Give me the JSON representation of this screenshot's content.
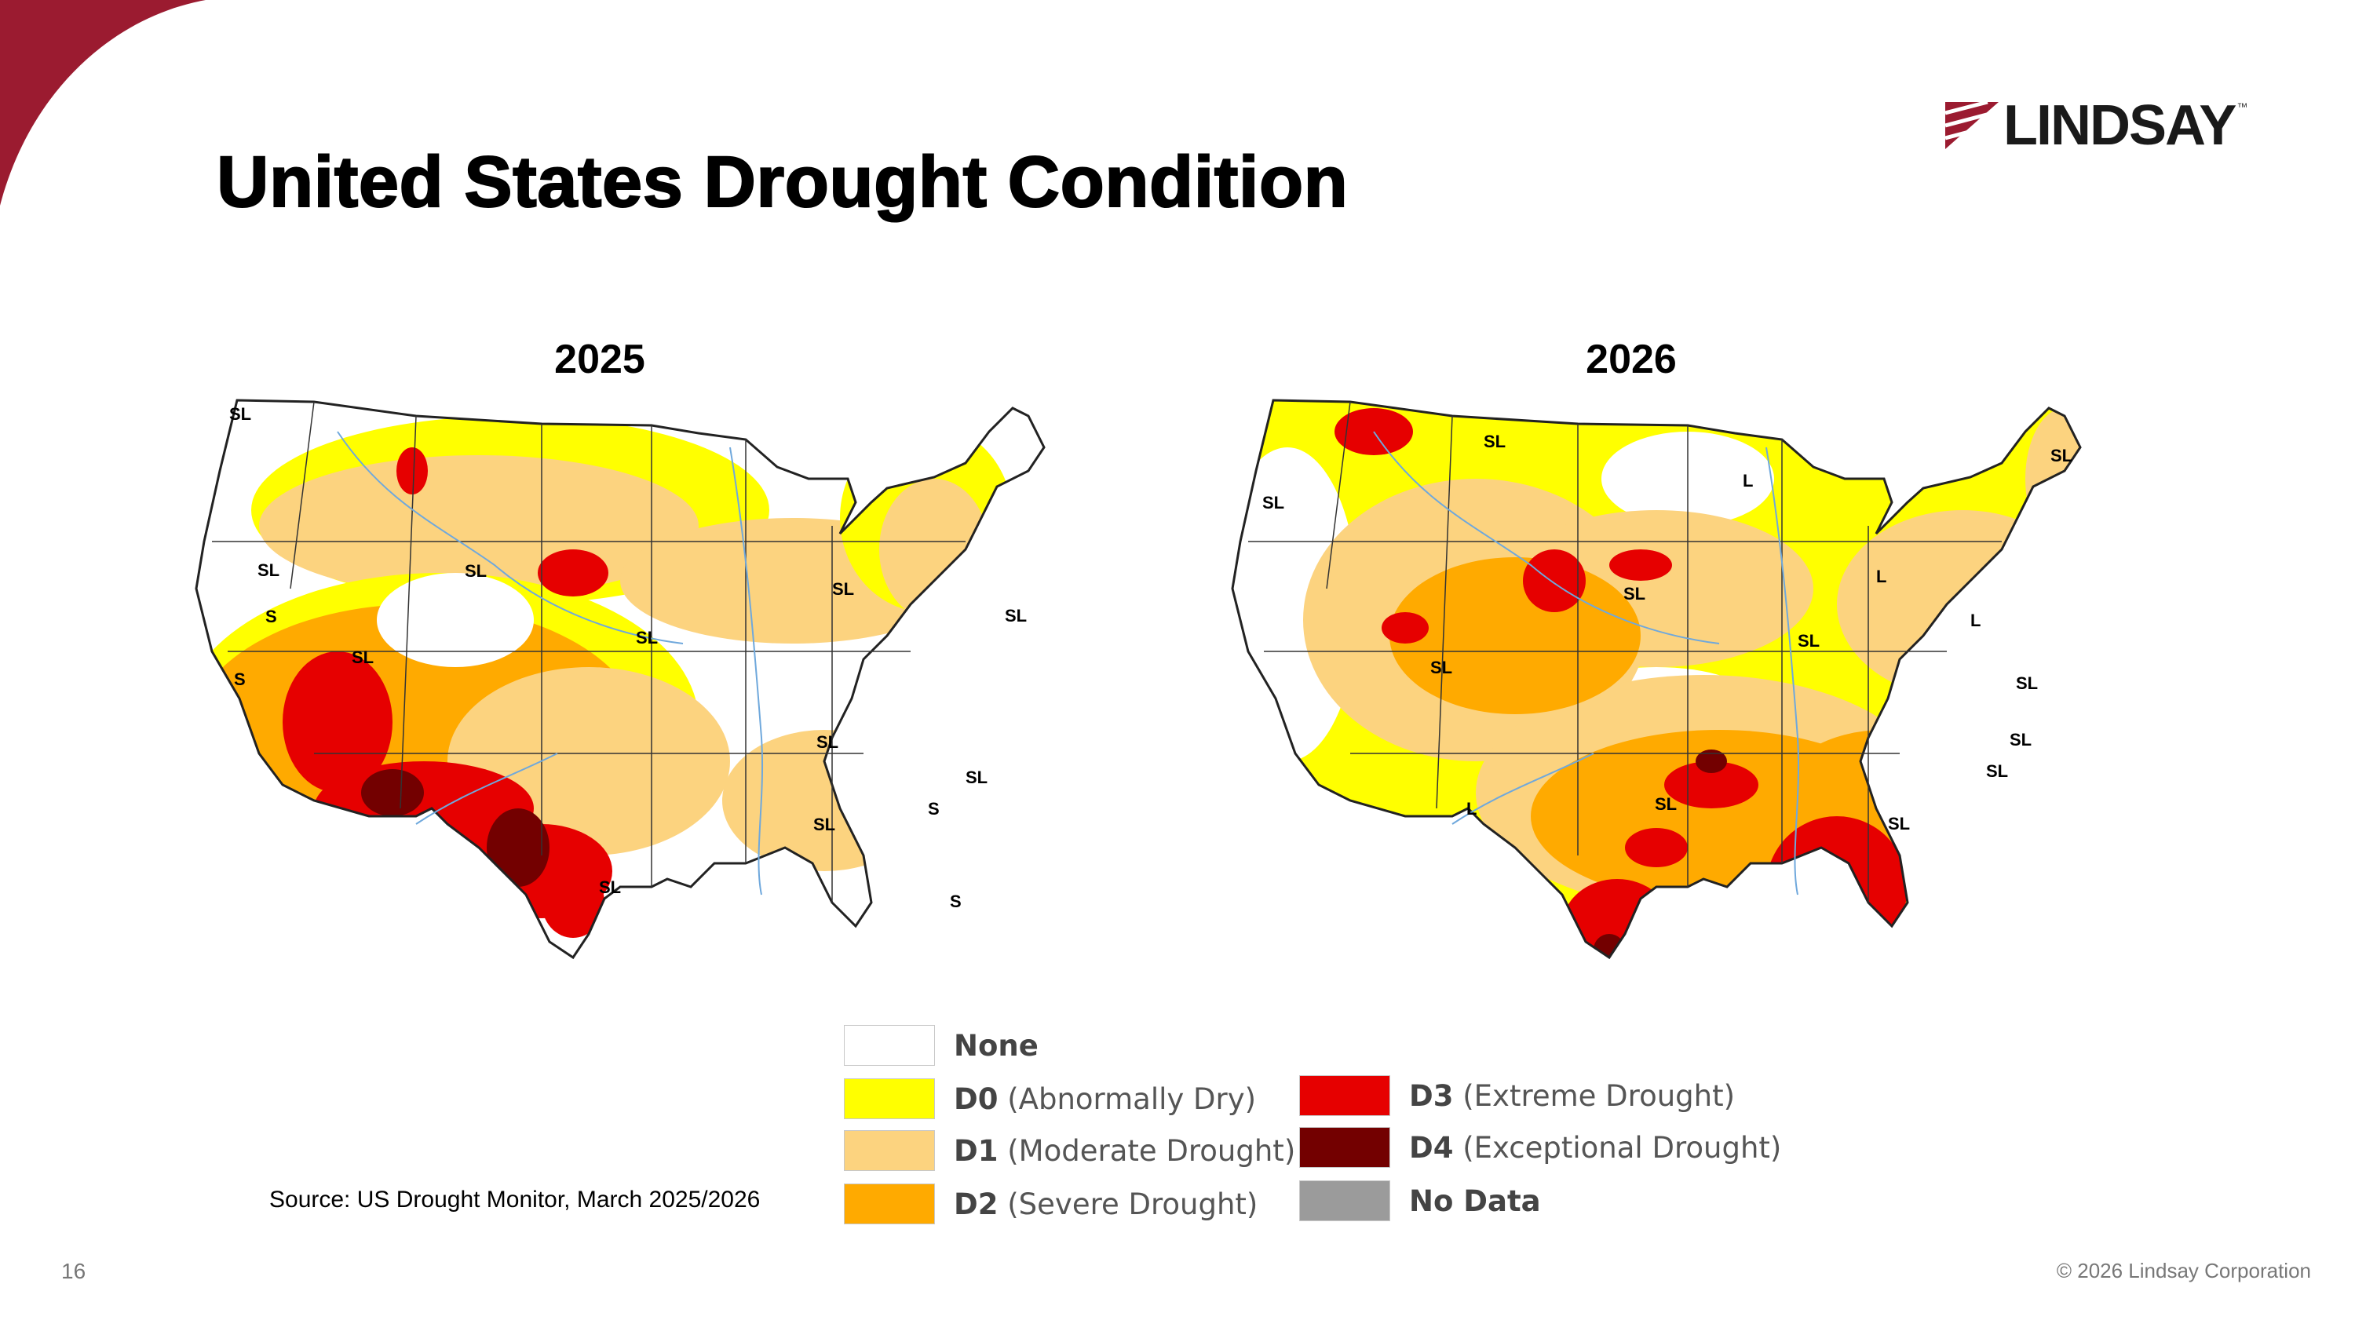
{
  "slide": {
    "title": "United States Drought Condition",
    "page_number": "16",
    "copyright": "© 2026 Lindsay Corporation",
    "source": "Source: US Drought Monitor, March 2025/2026"
  },
  "logo": {
    "text": "LINDSAY",
    "trademark": "™",
    "icon": "lindsay-stripes-logo",
    "color": "#9b1b30"
  },
  "maps": [
    {
      "year": "2025",
      "labels": [
        "SL",
        "SL",
        "S",
        "S",
        "SL",
        "SL",
        "SL",
        "SL",
        "SL",
        "SL",
        "SL",
        "S",
        "SL",
        "S",
        "SL"
      ]
    },
    {
      "year": "2026",
      "labels": [
        "SL",
        "SL",
        "SL",
        "L",
        "SL",
        "L",
        "L",
        "SL",
        "SL",
        "SL",
        "SL",
        "L",
        "SL",
        "SL",
        "SL"
      ]
    }
  ],
  "legend": [
    {
      "code": "",
      "label": "None",
      "color": "#ffffff"
    },
    {
      "code": "D0",
      "label": "(Abnormally Dry)",
      "color": "#ffff00"
    },
    {
      "code": "D1",
      "label": "(Moderate Drought)",
      "color": "#fcd37f"
    },
    {
      "code": "D2",
      "label": "(Severe Drought)",
      "color": "#ffaa00"
    },
    {
      "code": "D3",
      "label": "(Extreme Drought)",
      "color": "#e60000"
    },
    {
      "code": "D4",
      "label": "(Exceptional Drought)",
      "color": "#730000"
    },
    {
      "code": "",
      "label": "No Data",
      "color": "#9b9b9b"
    }
  ],
  "colors": {
    "accent": "#9b1b30",
    "none": "#ffffff",
    "d0": "#ffff00",
    "d1": "#fcd37f",
    "d2": "#ffaa00",
    "d3": "#e60000",
    "d4": "#730000",
    "water": "#6fa8dc"
  }
}
